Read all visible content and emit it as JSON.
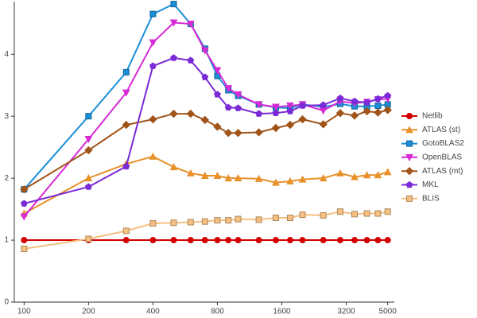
{
  "chart_data": {
    "type": "line",
    "x_scale": "log2",
    "grid": false,
    "legend": "right",
    "x": [
      100,
      200,
      300,
      400,
      500,
      600,
      700,
      800,
      900,
      1000,
      1250,
      1500,
      1750,
      2000,
      2500,
      3000,
      3500,
      4000,
      4500,
      5000
    ],
    "xlim": [
      90,
      5100
    ],
    "xticks": [
      100,
      200,
      400,
      800,
      1600,
      3200,
      5000
    ],
    "ylim": [
      0,
      4.85
    ],
    "yticks": [
      0,
      1,
      2,
      3,
      4
    ],
    "series": [
      {
        "name": "Netlib",
        "color": "#d40000",
        "marker": "circle",
        "values": [
          1,
          1,
          1,
          1,
          1,
          1,
          1,
          1,
          1,
          1,
          1,
          1,
          1,
          1,
          1,
          1,
          1,
          1,
          1,
          1
        ]
      },
      {
        "name": "ATLAS (st)",
        "color": "#e8902a",
        "marker": "triangle",
        "values": [
          1.43,
          2.0,
          2.23,
          2.35,
          2.18,
          2.08,
          2.04,
          2.04,
          2.0,
          2.0,
          1.99,
          1.93,
          1.95,
          1.98,
          2.0,
          2.08,
          2.02,
          2.05,
          2.05,
          2.1
        ]
      },
      {
        "name": "GotoBLAS2",
        "color": "#1a8fd8",
        "marker": "square",
        "values": [
          1.82,
          3.0,
          3.71,
          4.65,
          4.81,
          4.49,
          4.09,
          3.65,
          3.42,
          3.33,
          3.19,
          3.14,
          3.13,
          3.19,
          3.15,
          3.2,
          3.16,
          3.16,
          3.17,
          3.19
        ]
      },
      {
        "name": "OpenBLAS",
        "color": "#d62ad6",
        "marker": "triangle-down",
        "values": [
          1.38,
          2.63,
          3.38,
          4.19,
          4.51,
          4.49,
          4.06,
          3.74,
          3.45,
          3.35,
          3.19,
          3.15,
          3.17,
          3.19,
          3.09,
          3.24,
          3.21,
          3.23,
          3.27,
          3.28
        ]
      },
      {
        "name": "ATLAS (mt)",
        "color": "#a0541a",
        "marker": "diamond",
        "values": [
          1.82,
          2.45,
          2.86,
          2.95,
          3.04,
          3.04,
          2.94,
          2.83,
          2.73,
          2.73,
          2.74,
          2.81,
          2.86,
          2.95,
          2.87,
          3.05,
          3.01,
          3.08,
          3.06,
          3.1
        ]
      },
      {
        "name": "MKL",
        "color": "#7a2ad6",
        "marker": "pentagon",
        "values": [
          1.59,
          1.86,
          2.19,
          3.81,
          3.94,
          3.9,
          3.63,
          3.35,
          3.14,
          3.13,
          3.04,
          3.05,
          3.08,
          3.17,
          3.18,
          3.29,
          3.24,
          3.22,
          3.28,
          3.33
        ]
      },
      {
        "name": "BLIS",
        "color": "#f5c080",
        "marker": "square",
        "values": [
          0.86,
          1.02,
          1.15,
          1.27,
          1.28,
          1.29,
          1.3,
          1.32,
          1.32,
          1.34,
          1.33,
          1.36,
          1.36,
          1.41,
          1.4,
          1.46,
          1.42,
          1.43,
          1.43,
          1.46
        ]
      }
    ]
  }
}
